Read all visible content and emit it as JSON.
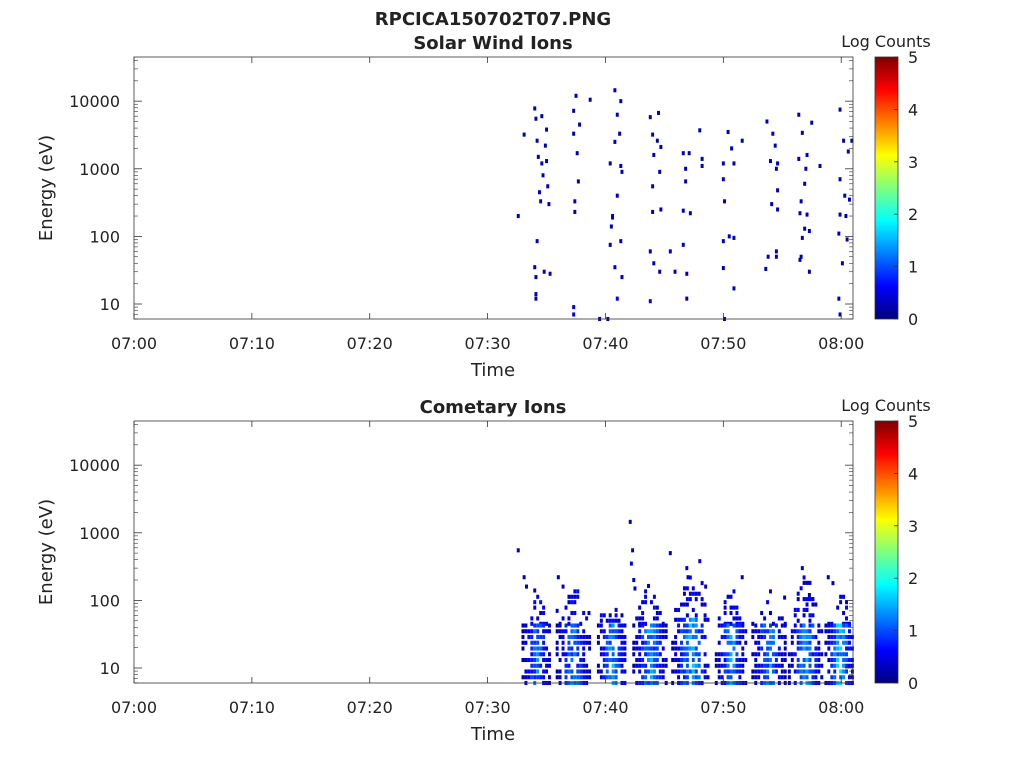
{
  "figure": {
    "title": "RPCICA150702T07.PNG"
  },
  "colorscale": {
    "stops": [
      "#00007f",
      "#0000ff",
      "#007fff",
      "#00ffff",
      "#7fff7f",
      "#ffff00",
      "#ff7f00",
      "#ff0000",
      "#7f0000"
    ]
  },
  "chart_data": [
    {
      "type": "heatmap",
      "title": "Solar Wind Ions",
      "xlabel": "Time",
      "ylabel": "Energy (eV)",
      "x_ticks": [
        "07:00",
        "07:10",
        "07:20",
        "07:30",
        "07:40",
        "07:50",
        "08:00"
      ],
      "x_tick_minutes": [
        0,
        10,
        20,
        30,
        40,
        50,
        60
      ],
      "xlim_minutes": [
        0,
        61
      ],
      "y_ticks": [
        "10",
        "100",
        "1000",
        "10000"
      ],
      "y_tick_values": [
        10,
        100,
        1000,
        10000
      ],
      "ylim": [
        6,
        45000
      ],
      "y_scale": "log",
      "colorbar": {
        "label": "Log Counts",
        "ticks": [
          "0",
          "1",
          "2",
          "3",
          "4",
          "5"
        ],
        "range": [
          0,
          5
        ]
      },
      "cells": [
        [
          32.6,
          200,
          0.3
        ],
        [
          33.1,
          3200,
          0.3
        ],
        [
          34.0,
          7800,
          0.3
        ],
        [
          34.1,
          5500,
          0.3
        ],
        [
          34.2,
          2600,
          0.3
        ],
        [
          34.3,
          1500,
          0.3
        ],
        [
          34.4,
          450,
          0.3
        ],
        [
          34.5,
          330,
          0.3
        ],
        [
          34.2,
          85,
          0.3
        ],
        [
          34.0,
          35,
          0.3
        ],
        [
          34.1,
          25,
          0.3
        ],
        [
          34.1,
          14,
          0.3
        ],
        [
          34.1,
          12,
          0.3
        ],
        [
          34.6,
          1200,
          0.3
        ],
        [
          34.7,
          800,
          0.3
        ],
        [
          34.9,
          2200,
          0.3
        ],
        [
          35.0,
          3800,
          0.3
        ],
        [
          35.0,
          1300,
          0.3
        ],
        [
          35.1,
          550,
          0.3
        ],
        [
          35.2,
          300,
          0.3
        ],
        [
          34.8,
          30,
          0.3
        ],
        [
          35.3,
          28,
          0.3
        ],
        [
          34.6,
          6000,
          0.3
        ],
        [
          37.3,
          7200,
          0.3
        ],
        [
          37.5,
          12000,
          0.3
        ],
        [
          37.8,
          4500,
          0.3
        ],
        [
          37.6,
          1700,
          0.3
        ],
        [
          37.7,
          650,
          0.3
        ],
        [
          37.4,
          330,
          0.3
        ],
        [
          37.4,
          230,
          0.3
        ],
        [
          37.3,
          3300,
          0.3
        ],
        [
          37.3,
          9,
          0.6
        ],
        [
          37.3,
          7,
          0.6
        ],
        [
          38.7,
          10500,
          0.3
        ],
        [
          39.5,
          6,
          0.3
        ],
        [
          40.8,
          14500,
          0.3
        ],
        [
          41.3,
          10000,
          0.3
        ],
        [
          40.4,
          1200,
          0.3
        ],
        [
          40.8,
          2500,
          0.3
        ],
        [
          41.0,
          6300,
          0.3
        ],
        [
          41.2,
          3300,
          0.3
        ],
        [
          41.4,
          900,
          0.3
        ],
        [
          41.0,
          400,
          0.3
        ],
        [
          40.6,
          200,
          0.3
        ],
        [
          40.5,
          140,
          0.3
        ],
        [
          40.4,
          75,
          0.3
        ],
        [
          40.8,
          35,
          0.3
        ],
        [
          41.4,
          25,
          0.3
        ],
        [
          41.3,
          85,
          0.3
        ],
        [
          40.2,
          6,
          0.3
        ],
        [
          40.6,
          190,
          0.3
        ],
        [
          41.0,
          12,
          0.6
        ],
        [
          41.3,
          1100,
          0.3
        ],
        [
          43.8,
          5800,
          0.3
        ],
        [
          44.5,
          6700,
          0.3
        ],
        [
          44.0,
          3200,
          0.3
        ],
        [
          44.4,
          2600,
          0.3
        ],
        [
          44.1,
          1600,
          0.3
        ],
        [
          44.6,
          900,
          0.3
        ],
        [
          44.0,
          550,
          0.3
        ],
        [
          44.7,
          250,
          0.3
        ],
        [
          44.0,
          230,
          0.3
        ],
        [
          43.8,
          60,
          0.3
        ],
        [
          44.1,
          40,
          0.3
        ],
        [
          44.6,
          30,
          0.3
        ],
        [
          43.8,
          11,
          0.6
        ],
        [
          44.7,
          2100,
          0.3
        ],
        [
          45.5,
          60,
          0.3
        ],
        [
          45.9,
          30,
          0.3
        ],
        [
          46.6,
          1700,
          0.3
        ],
        [
          47.1,
          1700,
          0.3
        ],
        [
          46.8,
          1000,
          0.3
        ],
        [
          46.8,
          650,
          0.3
        ],
        [
          46.6,
          240,
          0.3
        ],
        [
          47.2,
          220,
          0.3
        ],
        [
          46.6,
          75,
          0.3
        ],
        [
          46.9,
          28,
          0.3
        ],
        [
          46.9,
          12,
          0.3
        ],
        [
          48.0,
          3700,
          0.3
        ],
        [
          48.2,
          1400,
          0.3
        ],
        [
          48.2,
          1100,
          0.3
        ],
        [
          50.0,
          1200,
          0.3
        ],
        [
          50.4,
          3500,
          0.3
        ],
        [
          50.7,
          2000,
          0.3
        ],
        [
          50.9,
          1200,
          0.3
        ],
        [
          50.0,
          700,
          0.3
        ],
        [
          50.1,
          330,
          0.3
        ],
        [
          50.5,
          100,
          0.3
        ],
        [
          50.9,
          95,
          0.3
        ],
        [
          50.0,
          85,
          0.3
        ],
        [
          50.0,
          34,
          0.3
        ],
        [
          50.9,
          17,
          0.3
        ],
        [
          50.1,
          6,
          0.3
        ],
        [
          51.6,
          2600,
          0.3
        ],
        [
          53.7,
          5000,
          0.3
        ],
        [
          54.2,
          3300,
          0.3
        ],
        [
          54.4,
          2200,
          0.3
        ],
        [
          54.0,
          1300,
          0.3
        ],
        [
          54.5,
          1000,
          0.3
        ],
        [
          54.6,
          1200,
          0.3
        ],
        [
          54.6,
          480,
          0.3
        ],
        [
          54.1,
          300,
          0.3
        ],
        [
          54.6,
          250,
          0.3
        ],
        [
          53.8,
          50,
          0.3
        ],
        [
          54.5,
          50,
          0.3
        ],
        [
          53.6,
          33,
          0.3
        ],
        [
          54.5,
          60,
          0.3
        ],
        [
          56.4,
          6300,
          0.3
        ],
        [
          56.7,
          3400,
          0.3
        ],
        [
          57.1,
          1600,
          0.3
        ],
        [
          56.4,
          1400,
          0.3
        ],
        [
          57.0,
          1000,
          0.3
        ],
        [
          56.9,
          600,
          0.3
        ],
        [
          56.6,
          330,
          0.3
        ],
        [
          56.5,
          220,
          0.3
        ],
        [
          57.1,
          210,
          0.3
        ],
        [
          56.9,
          130,
          0.3
        ],
        [
          57.3,
          120,
          0.3
        ],
        [
          56.7,
          95,
          0.3
        ],
        [
          56.6,
          50,
          0.3
        ],
        [
          57.3,
          30,
          0.3
        ],
        [
          56.5,
          45,
          0.3
        ],
        [
          57.5,
          4800,
          0.3
        ],
        [
          58.2,
          1100,
          0.3
        ],
        [
          59.9,
          7500,
          0.3
        ],
        [
          60.2,
          2600,
          0.3
        ],
        [
          59.9,
          700,
          0.3
        ],
        [
          60.3,
          400,
          0.3
        ],
        [
          59.9,
          210,
          0.3
        ],
        [
          60.4,
          200,
          0.3
        ],
        [
          59.8,
          110,
          0.3
        ],
        [
          60.1,
          40,
          0.3
        ],
        [
          60.5,
          90,
          0.3
        ],
        [
          59.8,
          12,
          0.3
        ],
        [
          59.9,
          7,
          0.3
        ],
        [
          60.6,
          1800,
          0.3
        ],
        [
          60.7,
          350,
          0.3
        ],
        [
          60.9,
          2600,
          0.3
        ]
      ]
    },
    {
      "type": "heatmap",
      "title": "Cometary Ions",
      "xlabel": "Time",
      "ylabel": "Energy (eV)",
      "x_ticks": [
        "07:00",
        "07:10",
        "07:20",
        "07:30",
        "07:40",
        "07:50",
        "08:00"
      ],
      "x_tick_minutes": [
        0,
        10,
        20,
        30,
        40,
        50,
        60
      ],
      "xlim_minutes": [
        0,
        61
      ],
      "y_ticks": [
        "10",
        "100",
        "1000",
        "10000"
      ],
      "y_tick_values": [
        10,
        100,
        1000,
        10000
      ],
      "ylim": [
        6,
        45000
      ],
      "y_scale": "log",
      "colorbar": {
        "label": "Log Counts",
        "ticks": [
          "0",
          "1",
          "2",
          "3",
          "4",
          "5"
        ],
        "range": [
          0,
          5
        ]
      },
      "bursts": [
        {
          "center": 34.2,
          "half_width": 1.2,
          "top": 130,
          "core_top": 45,
          "peak": 1.3
        },
        {
          "center": 37.3,
          "half_width": 1.4,
          "top": 200,
          "core_top": 45,
          "peak": 1.4
        },
        {
          "center": 40.6,
          "half_width": 1.2,
          "top": 150,
          "core_top": 50,
          "peak": 1.6
        },
        {
          "center": 43.8,
          "half_width": 1.4,
          "top": 250,
          "core_top": 45,
          "peak": 1.5
        },
        {
          "center": 47.3,
          "half_width": 1.6,
          "top": 300,
          "core_top": 60,
          "peak": 1.7
        },
        {
          "center": 50.7,
          "half_width": 1.3,
          "top": 200,
          "core_top": 45,
          "peak": 1.5
        },
        {
          "center": 53.9,
          "half_width": 1.4,
          "top": 150,
          "core_top": 45,
          "peak": 1.4
        },
        {
          "center": 57.0,
          "half_width": 1.4,
          "top": 280,
          "core_top": 50,
          "peak": 1.6
        },
        {
          "center": 59.9,
          "half_width": 1.2,
          "top": 180,
          "core_top": 45,
          "peak": 1.8
        }
      ],
      "cells": [
        [
          32.6,
          550,
          0.3
        ],
        [
          33.1,
          220,
          0.3
        ],
        [
          33.3,
          160,
          0.3
        ],
        [
          34.0,
          140,
          0.3
        ],
        [
          36.0,
          220,
          0.3
        ],
        [
          36.4,
          160,
          0.3
        ],
        [
          42.1,
          1450,
          0.3
        ],
        [
          42.3,
          550,
          0.3
        ],
        [
          42.2,
          350,
          0.5
        ],
        [
          42.4,
          200,
          0.4
        ],
        [
          42.5,
          150,
          0.3
        ],
        [
          45.5,
          500,
          0.3
        ],
        [
          46.9,
          300,
          0.5
        ],
        [
          47.0,
          220,
          0.4
        ],
        [
          48.0,
          380,
          0.6
        ],
        [
          48.2,
          180,
          0.4
        ],
        [
          48.5,
          160,
          0.3
        ],
        [
          51.6,
          220,
          0.3
        ],
        [
          55.2,
          110,
          0.3
        ],
        [
          56.7,
          300,
          0.4
        ],
        [
          57.3,
          120,
          0.3
        ],
        [
          58.9,
          220,
          0.3
        ],
        [
          59.3,
          180,
          0.3
        ],
        [
          35.9,
          70,
          0.3
        ],
        [
          38.6,
          65,
          0.3
        ]
      ]
    }
  ]
}
